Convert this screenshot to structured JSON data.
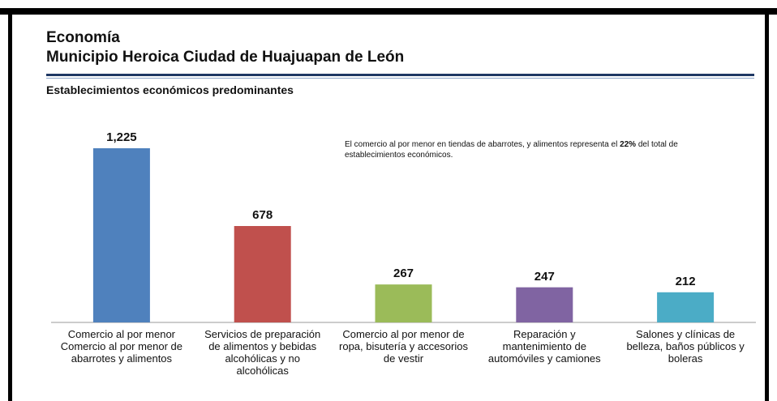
{
  "chart_data": {
    "type": "bar",
    "title": "Economía",
    "subtitle": "Municipio Heroica Ciudad de Huajuapan de León",
    "chart_title": "Establecimientos económicos predominantes",
    "annotation": [
      "El comercio al por menor en tiendas de abarrotes, y alimentos representa el ",
      "22%",
      " del total de establecimientos económicos."
    ],
    "categories": [
      "Comercio al por menor Comercio al por menor de abarrotes y alimentos",
      "Servicios de preparación de alimentos y bebidas alcohólicas y no alcohólicas",
      "Comercio al por menor de ropa, bisutería y accesorios de vestir",
      "Reparación y mantenimiento de automóviles y camiones",
      "Salones y clínicas de belleza, baños públicos y boleras"
    ],
    "values": [
      1225,
      678,
      267,
      247,
      212
    ],
    "value_labels": [
      "1,225",
      "678",
      "267",
      "247",
      "212"
    ],
    "colors": [
      "#4f81bd",
      "#c0504d",
      "#9bbb59",
      "#8064a2",
      "#4bacc6"
    ]
  }
}
